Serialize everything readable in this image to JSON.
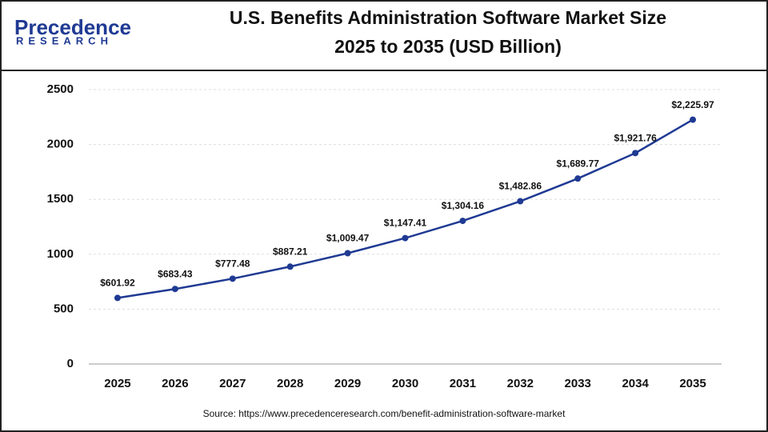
{
  "logo": {
    "name": "Precedence",
    "tagline": "RESEARCH"
  },
  "chart_data": {
    "type": "line",
    "title": "U.S. Benefits Administration Software Market Size",
    "subtitle": "2025 to 2035 (USD Billion)",
    "categories": [
      "2025",
      "2026",
      "2027",
      "2028",
      "2029",
      "2030",
      "2031",
      "2032",
      "2033",
      "2034",
      "2035"
    ],
    "series": [
      {
        "color": "#1f3a93",
        "values": [
          601.92,
          683.43,
          777.48,
          887.21,
          1009.47,
          1147.41,
          1304.16,
          1482.86,
          1689.77,
          1921.76,
          2225.97
        ],
        "value_labels": [
          "$601.92",
          "$683.43",
          "$777.48",
          "$887.21",
          "$1,009.47",
          "$1,147.41",
          "$1,304.16",
          "$1,482.86",
          "$1,689.77",
          "$1,921.76",
          "$2,225.97"
        ]
      }
    ],
    "ylim": [
      0,
      2500
    ],
    "yticks": [
      0,
      500,
      1000,
      1500,
      2000,
      2500
    ],
    "grid": true,
    "source": "Source: https://www.precedenceresearch.com/benefit-administration-software-market"
  }
}
